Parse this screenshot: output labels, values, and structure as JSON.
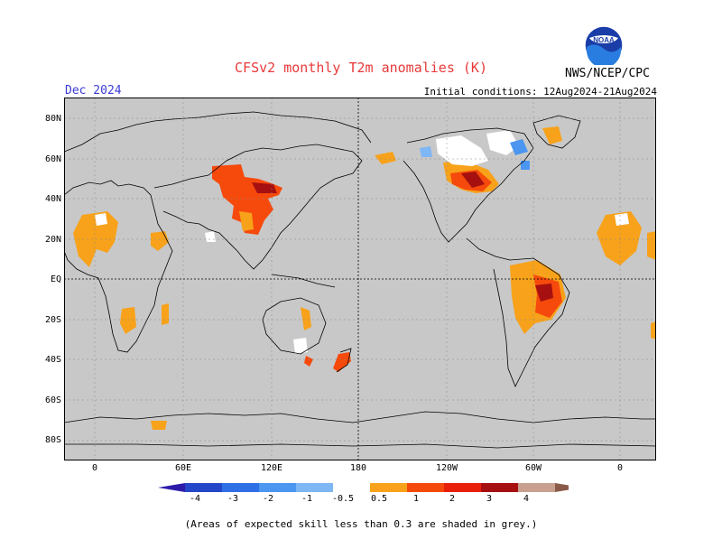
{
  "title": "CFSv2 monthly T2m anomalies (K)",
  "target_month": "Dec 2024",
  "initial_conditions": "Initial conditions: 12Aug2024-21Aug2024",
  "agency": "NWS/NCEP/CPC",
  "logo_text": "NOAA",
  "footnote": "(Areas of expected skill less than 0.3 are shaded in grey.)",
  "map": {
    "lon_range": [
      -20,
      360
    ],
    "lat_range": [
      -90,
      90
    ],
    "background": "#c8c8c8",
    "graticule": "dashed",
    "lat_labels": [
      "80N",
      "60N",
      "40N",
      "20N",
      "EQ",
      "20S",
      "40S",
      "60S",
      "80S"
    ],
    "lon_labels": [
      "0",
      "60E",
      "120E",
      "180",
      "120W",
      "60W",
      "0"
    ]
  },
  "colorbar": {
    "labels": [
      "-4",
      "-3",
      "-2",
      "-1",
      "-0.5",
      "0.5",
      "1",
      "2",
      "3",
      "4"
    ],
    "colors": [
      "#2d1ca8",
      "#2446c8",
      "#2e6fe6",
      "#4a96f0",
      "#7eb7f4",
      "#ffffff",
      "#f7a21a",
      "#f64a0c",
      "#e8200a",
      "#a61010",
      "#c8a090",
      "#8a5a48"
    ]
  }
}
